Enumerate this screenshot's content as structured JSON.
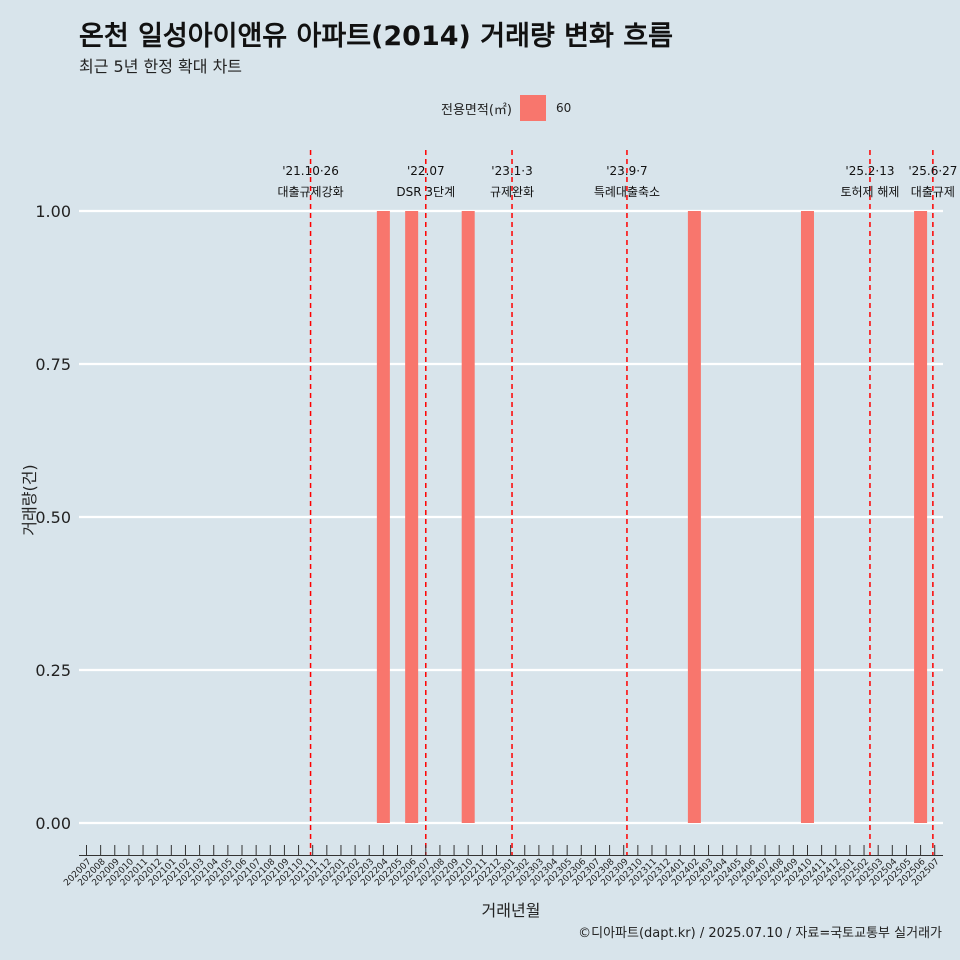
{
  "colors": {
    "background": "#d8e4eb",
    "bar": "#f8766d",
    "event_line": "#ff0000",
    "grid": "#ffffff"
  },
  "chart_data": {
    "type": "bar",
    "title": "온천 일성아이앤유 아파트(2014) 거래량 변화 흐름",
    "subtitle": "최근 5년 한정 확대 차트",
    "xlabel": "거래년월",
    "ylabel": "거래량(건)",
    "caption": "©디아파트(dapt.kr) / 2025.07.10 / 자료=국토교통부 실거래가",
    "legend": {
      "title": "전용면적(㎡)",
      "position": "top",
      "entries": [
        "60"
      ]
    },
    "ylim": [
      0,
      1
    ],
    "y_ticks": [
      "0.00",
      "0.25",
      "0.50",
      "0.75",
      "1.00"
    ],
    "grid": true,
    "categories": [
      "202007",
      "202008",
      "202009",
      "202010",
      "202011",
      "202012",
      "202101",
      "202102",
      "202103",
      "202104",
      "202105",
      "202106",
      "202107",
      "202108",
      "202109",
      "202110",
      "202111",
      "202112",
      "202201",
      "202202",
      "202203",
      "202204",
      "202205",
      "202206",
      "202207",
      "202208",
      "202209",
      "202210",
      "202211",
      "202212",
      "202301",
      "202302",
      "202303",
      "202304",
      "202305",
      "202306",
      "202307",
      "202308",
      "202309",
      "202310",
      "202311",
      "202312",
      "202401",
      "202402",
      "202403",
      "202404",
      "202405",
      "202406",
      "202407",
      "202408",
      "202409",
      "202410",
      "202411",
      "202412",
      "202501",
      "202502",
      "202503",
      "202504",
      "202505",
      "202506",
      "202507"
    ],
    "series": [
      {
        "name": "60",
        "values": [
          0,
          0,
          0,
          0,
          0,
          0,
          0,
          0,
          0,
          0,
          0,
          0,
          0,
          0,
          0,
          0,
          0,
          0,
          0,
          0,
          0,
          1,
          0,
          1,
          0,
          0,
          0,
          1,
          0,
          0,
          0,
          0,
          0,
          0,
          0,
          0,
          0,
          0,
          0,
          0,
          0,
          0,
          0,
          1,
          0,
          0,
          0,
          0,
          0,
          0,
          0,
          1,
          0,
          0,
          0,
          0,
          0,
          0,
          0,
          1,
          0
        ]
      }
    ],
    "events": [
      {
        "date": "'21.10·26",
        "label": "대출규제강화",
        "x": "202110",
        "offset": 0.85
      },
      {
        "date": "'22.07",
        "label": "DSR 3단계",
        "x": "202207",
        "offset": 0
      },
      {
        "date": "'23.1·3",
        "label": "규제완화",
        "x": "202301",
        "offset": 0.1
      },
      {
        "date": "'23.9·7",
        "label": "특례대출축소",
        "x": "202309",
        "offset": 0.23
      },
      {
        "date": "'25.2·13",
        "label": "토허제 해제",
        "x": "202502",
        "offset": 0.42
      },
      {
        "date": "'25.6·27",
        "label": "대출규제",
        "x": "202506",
        "offset": 0.87
      }
    ]
  }
}
